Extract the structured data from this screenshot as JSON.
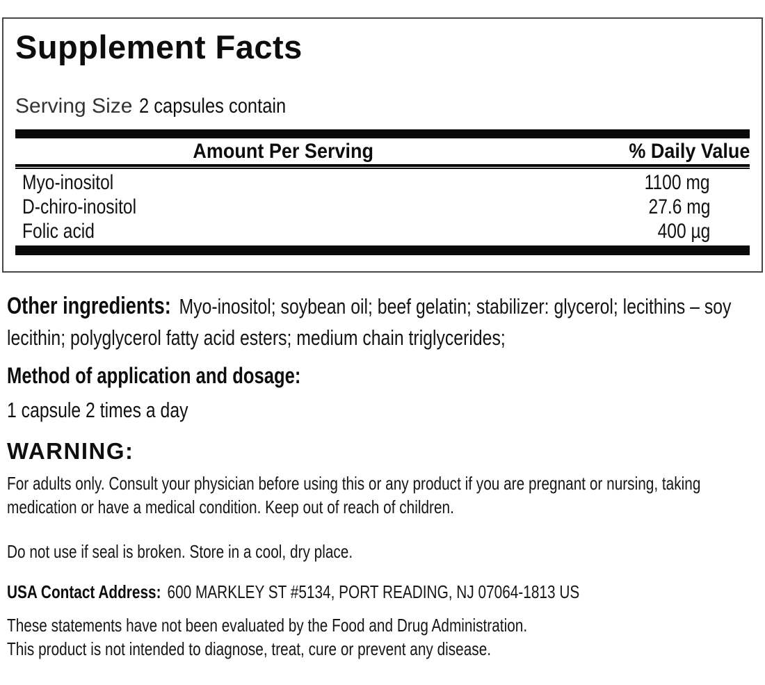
{
  "panel": {
    "title": "Supplement Facts",
    "serving_label": "Serving Size",
    "serving_value": "2 capsules contain",
    "columns": {
      "amount": "Amount Per Serving",
      "daily_value": "% Daily Value"
    },
    "rows": [
      {
        "name": "Myo-inositol",
        "amount": "1100 mg"
      },
      {
        "name": "D-chiro-inositol",
        "amount": "27.6 mg"
      },
      {
        "name": "Folic acid",
        "amount": "400 µg"
      }
    ]
  },
  "sections": {
    "other_ingredients_label": "Other ingredients:",
    "other_ingredients_text": "Myo-inositol; soybean oil; beef gelatin; stabilizer: glycerol; lecithins – soy lecithin; polyglycerol fatty acid esters; medium chain triglycerides;",
    "method_heading": "Method of application and dosage:",
    "method_text": "1 capsule 2 times a day",
    "warning_heading": "WARNING:",
    "warning_text": "For adults only. Consult your physician before using this or any product if you are pregnant or nursing, taking medication or have a medical condition. Keep out of reach of children.",
    "storage_text": "Do not use if seal is broken. Store in a cool, dry place.",
    "contact_label": "USA Contact Address:",
    "contact_text": "600 MARKLEY ST #5134, PORT READING, NJ 07064-1813 US",
    "disclaimer_line1": "These statements have not been evaluated by the Food and Drug Administration.",
    "disclaimer_line2": "This product is not intended to diagnose, treat, cure or prevent any disease."
  },
  "colors": {
    "background": "#ffffff",
    "text": "#111111",
    "panel_border": "#474747",
    "bar": "#0a0a0a"
  }
}
